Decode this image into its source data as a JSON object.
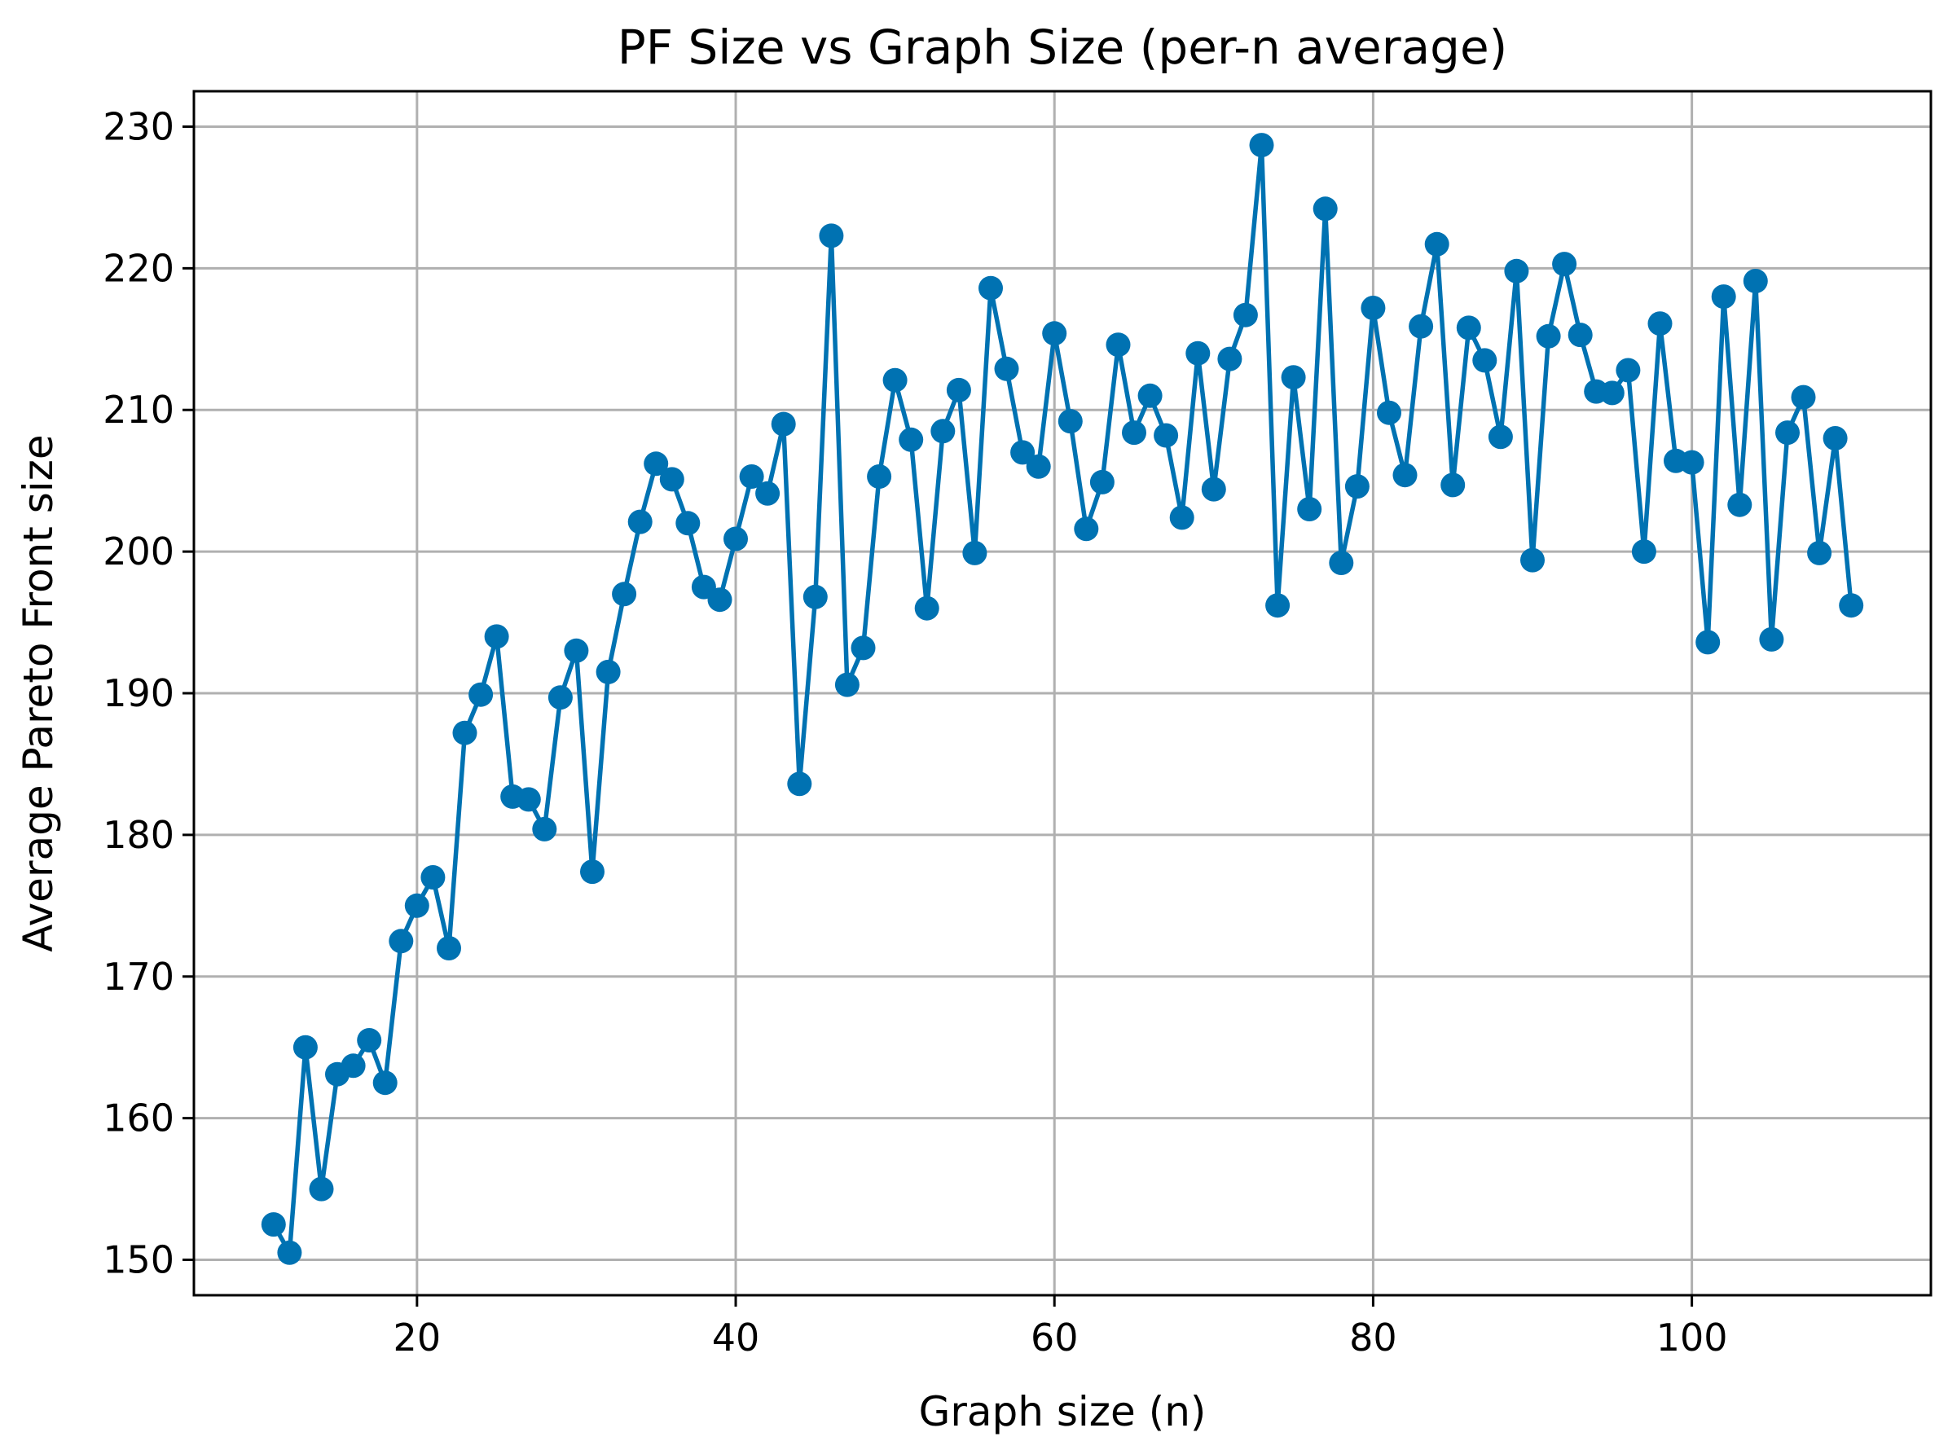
{
  "chart_data": {
    "type": "line",
    "title": "PF Size vs Graph Size (per-n average)",
    "xlabel": "Graph size (n)",
    "ylabel": "Average Pareto Front size",
    "xlim": [
      6,
      115
    ],
    "ylim": [
      147.5,
      232.5
    ],
    "xticks": [
      20,
      40,
      60,
      80,
      100
    ],
    "xtick_labels": [
      "20",
      "40",
      "60",
      "80",
      "100"
    ],
    "yticks": [
      150,
      160,
      170,
      180,
      190,
      200,
      210,
      220,
      230
    ],
    "ytick_labels": [
      "150",
      "160",
      "170",
      "180",
      "190",
      "200",
      "210",
      "220",
      "230"
    ],
    "grid": true,
    "marker": "circle",
    "color": "#0072B2",
    "series": [
      {
        "name": "PF size",
        "x": [
          11,
          12,
          13,
          14,
          15,
          16,
          17,
          18,
          19,
          20,
          21,
          22,
          23,
          24,
          25,
          26,
          27,
          28,
          29,
          30,
          31,
          32,
          33,
          34,
          35,
          36,
          37,
          38,
          39,
          40,
          41,
          42,
          43,
          44,
          45,
          46,
          47,
          48,
          49,
          50,
          51,
          52,
          53,
          54,
          55,
          56,
          57,
          58,
          59,
          60,
          61,
          62,
          63,
          64,
          65,
          66,
          67,
          68,
          69,
          70,
          71,
          72,
          73,
          74,
          75,
          76,
          77,
          78,
          79,
          80,
          81,
          82,
          83,
          84,
          85,
          86,
          87,
          88,
          89,
          90,
          91,
          92,
          93,
          94,
          95,
          96,
          97,
          98,
          99,
          100,
          101,
          102,
          103,
          104,
          105,
          106,
          107,
          108,
          109,
          110
        ],
        "y": [
          152.5,
          150.5,
          165.0,
          155.0,
          163.1,
          163.7,
          165.5,
          162.5,
          172.5,
          175.0,
          177.0,
          172.0,
          187.2,
          189.9,
          194.0,
          182.7,
          182.5,
          180.4,
          189.7,
          193.0,
          177.4,
          191.5,
          197.0,
          202.1,
          206.2,
          205.1,
          202.0,
          197.5,
          196.6,
          200.9,
          205.3,
          204.1,
          209.0,
          183.6,
          196.8,
          222.3,
          190.6,
          193.2,
          205.3,
          212.1,
          207.9,
          196.0,
          208.5,
          211.4,
          199.9,
          218.6,
          212.9,
          207.0,
          206.0,
          215.4,
          209.2,
          201.6,
          204.9,
          214.6,
          208.4,
          211.0,
          208.2,
          202.4,
          214.0,
          204.4,
          213.6,
          216.7,
          228.7,
          196.2,
          212.3,
          203.0,
          224.2,
          199.2,
          204.6,
          217.2,
          209.8,
          205.4,
          215.9,
          221.7,
          204.7,
          215.8,
          213.5,
          208.1,
          219.8,
          199.4,
          215.2,
          220.3,
          215.3,
          211.3,
          211.2,
          212.8,
          200.0,
          216.1,
          206.4,
          206.3,
          193.6,
          218.0,
          203.3,
          219.1,
          193.8,
          208.4,
          210.9,
          199.9,
          208.0,
          196.2
        ]
      }
    ]
  }
}
